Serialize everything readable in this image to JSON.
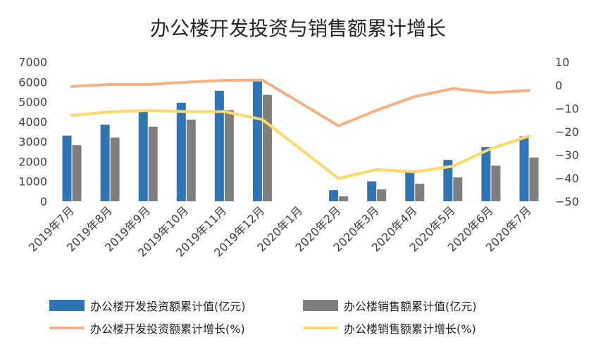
{
  "chart_data": {
    "type": "bar+line",
    "title": "办公楼开发投资与销售额累计增长",
    "categories": [
      "2019年7月",
      "2019年8月",
      "2019年9月",
      "2019年10月",
      "2019年11月",
      "2019年12月",
      "2020年1月",
      "2020年2月",
      "2020年3月",
      "2020年4月",
      "2020年5月",
      "2020年6月",
      "2020年7月"
    ],
    "left_axis": {
      "min": 0,
      "max": 7000,
      "step": 1000,
      "tick_labels": [
        "0",
        "1000",
        "2000",
        "3000",
        "4000",
        "5000",
        "6000",
        "7000"
      ]
    },
    "right_axis": {
      "min": -50,
      "max": 10,
      "step": 10,
      "tick_labels": [
        "−50",
        "−40",
        "−30",
        "−20",
        "−10",
        "0",
        "10"
      ]
    },
    "series": [
      {
        "name": "办公楼开发投资额累计值(亿元)",
        "kind": "bar",
        "axis": "left",
        "color": "#2E75B6",
        "values": [
          3300,
          3850,
          4500,
          4950,
          5550,
          6050,
          null,
          560,
          1000,
          1550,
          2080,
          2720,
          3260
        ]
      },
      {
        "name": "办公楼销售额累计值(亿元)",
        "kind": "bar",
        "axis": "left",
        "color": "#7F7F7F",
        "values": [
          2820,
          3200,
          3750,
          4100,
          4580,
          5350,
          null,
          250,
          600,
          880,
          1200,
          1790,
          2200
        ]
      },
      {
        "name": "办公楼开发投资额累计增长(%)",
        "kind": "line",
        "axis": "right",
        "color": "#F4B183",
        "values": [
          -0.5,
          0.3,
          0.3,
          1.3,
          2.1,
          2.2,
          null,
          -17.5,
          -10.8,
          -4.9,
          -1.5,
          -3.2,
          -2.3
        ]
      },
      {
        "name": "办公楼销售额累计增长(%)",
        "kind": "line",
        "axis": "right",
        "color": "#FFD966",
        "values": [
          -13.0,
          -11.5,
          -10.9,
          -11.4,
          -11.4,
          -14.8,
          null,
          -40.2,
          -36.3,
          -37.3,
          -34.9,
          -27.3,
          -21.9
        ]
      }
    ],
    "legend_position": "bottom",
    "grid": false
  }
}
